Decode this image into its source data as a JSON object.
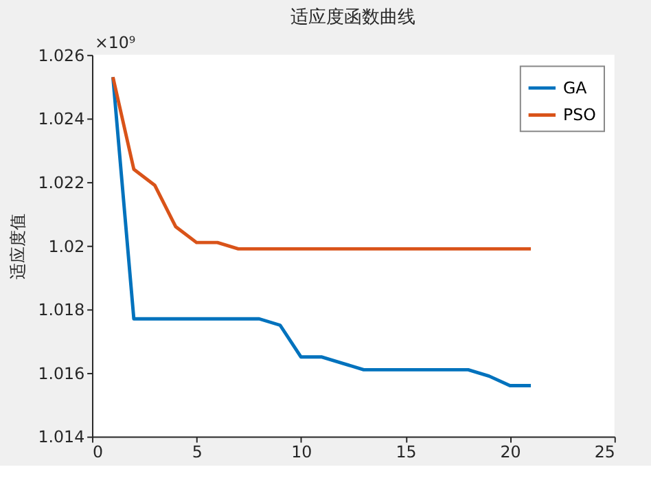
{
  "chart_data": {
    "type": "line",
    "title": "适应度函数曲线",
    "ylabel": "适应度值",
    "x": [
      1,
      2,
      3,
      4,
      5,
      6,
      7,
      8,
      9,
      10,
      11,
      12,
      13,
      14,
      15,
      16,
      17,
      18,
      19,
      20,
      21
    ],
    "series": [
      {
        "name": "GA",
        "color": "#0072bd",
        "values": [
          1.0253,
          1.0177,
          1.0177,
          1.0177,
          1.0177,
          1.0177,
          1.0177,
          1.0177,
          1.0175,
          1.0165,
          1.0165,
          1.0163,
          1.0161,
          1.0161,
          1.0161,
          1.0161,
          1.0161,
          1.0161,
          1.0159,
          1.0156,
          1.0156
        ]
      },
      {
        "name": "PSO",
        "color": "#d95319",
        "values": [
          1.0253,
          1.0224,
          1.0219,
          1.0206,
          1.0201,
          1.0201,
          1.0199,
          1.0199,
          1.0199,
          1.0199,
          1.0199,
          1.0199,
          1.0199,
          1.0199,
          1.0199,
          1.0199,
          1.0199,
          1.0199,
          1.0199,
          1.0199,
          1.0199
        ]
      }
    ],
    "xlim": [
      0,
      25
    ],
    "xticks": [
      0,
      5,
      10,
      15,
      20,
      25
    ],
    "ylim": [
      1.014,
      1.026
    ],
    "yticks": [
      1.014,
      1.016,
      1.018,
      1.02,
      1.022,
      1.024,
      1.026
    ],
    "annotations": [
      "×10⁹"
    ],
    "grid": false,
    "legend": "top right",
    "marker": "none",
    "line_style": "solid"
  }
}
